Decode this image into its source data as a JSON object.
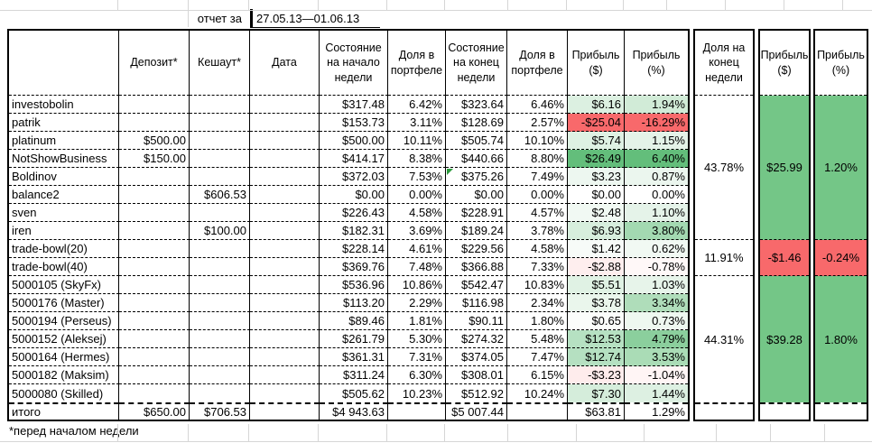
{
  "report": {
    "label": "отчет за",
    "period": "27.05.13—01.06.13",
    "footnote": "*перед началом недели"
  },
  "table": {
    "headers": [
      "",
      "Депозит*",
      "Кешаут*",
      "Дата",
      "Состояние на начало недели",
      "Доля в портфеле",
      "Состояние на конец недели",
      "Доля в портфеле",
      "Прибыль ($)",
      "Прибыль (%)"
    ],
    "rows": [
      {
        "name": "investobolin",
        "deposit": "",
        "cashout": "",
        "date": "",
        "start": "$317.48",
        "share_start": "6.42%",
        "end": "$323.64",
        "share_end": "6.46%",
        "usd": "$6.16",
        "pct": "1.94%",
        "usd_fill": "#DCF0E1",
        "pct_fill": "#D1EBD7"
      },
      {
        "name": "patrik",
        "deposit": "",
        "cashout": "",
        "date": "",
        "start": "$153.73",
        "share_start": "3.11%",
        "end": "$128.69",
        "share_end": "2.57%",
        "usd": "-$25.04",
        "pct": "-16.29%",
        "usd_fill": "#F8696B",
        "pct_fill": "#F8696B"
      },
      {
        "name": "platinum",
        "deposit": "$500.00",
        "cashout": "",
        "date": "",
        "start": "$500.00",
        "share_start": "10.11%",
        "end": "$505.74",
        "share_end": "10.10%",
        "usd": "$5.74",
        "pct": "1.15%",
        "usd_fill": "#DEF1E3",
        "pct_fill": "#E4F3E8"
      },
      {
        "name": "NotShowBusiness",
        "deposit": "$150.00",
        "cashout": "",
        "date": "",
        "start": "$414.17",
        "share_start": "8.38%",
        "end": "$440.66",
        "share_end": "8.80%",
        "usd": "$26.49",
        "pct": "6.40%",
        "usd_fill": "#63BE7B",
        "pct_fill": "#63BE7B"
      },
      {
        "name": "Boldinov",
        "deposit": "",
        "cashout": "",
        "date": "",
        "start": "$372.03",
        "share_start": "7.53%",
        "end": "$375.26",
        "share_end": "7.49%",
        "usd": "$3.23",
        "pct": "0.87%",
        "usd_fill": "#EDF7F0",
        "pct_fill": "#EBF6EE"
      },
      {
        "name": "balance2",
        "deposit": "",
        "cashout": "$606.53",
        "date": "",
        "start": "$0.00",
        "share_start": "0.00%",
        "end": "$0.00",
        "share_end": "0.00%",
        "usd": "$0.00",
        "pct": "0.00%",
        "usd_fill": "#FFFFFF",
        "pct_fill": "#FFFFFF"
      },
      {
        "name": "sven",
        "deposit": "",
        "cashout": "",
        "date": "",
        "start": "$226.43",
        "share_start": "4.58%",
        "end": "$228.91",
        "share_end": "4.57%",
        "usd": "$2.48",
        "pct": "1.10%",
        "usd_fill": "#F1F9F3",
        "pct_fill": "#E5F3E9"
      },
      {
        "name": "iren",
        "deposit": "",
        "cashout": "$100.00",
        "date": "",
        "start": "$182.31",
        "share_start": "3.69%",
        "end": "$189.24",
        "share_end": "3.78%",
        "usd": "$6.93",
        "pct": "3.80%",
        "usd_fill": "#D7EEDD",
        "pct_fill": "#A3D9B1"
      },
      {
        "name": "trade-bowl(20)",
        "deposit": "",
        "cashout": "",
        "date": "",
        "start": "$228.14",
        "share_start": "4.61%",
        "end": "$229.56",
        "share_end": "4.58%",
        "usd": "$1.42",
        "pct": "0.62%",
        "usd_fill": "#F7FBF8",
        "pct_fill": "#F1F9F3"
      },
      {
        "name": "trade-bowl(40)",
        "deposit": "",
        "cashout": "",
        "date": "",
        "start": "$369.76",
        "share_start": "7.48%",
        "end": "$366.88",
        "share_end": "7.33%",
        "usd": "-$2.88",
        "pct": "-0.78%",
        "usd_fill": "#FEEEEE",
        "pct_fill": "#FFF8F8"
      },
      {
        "name": "5000105 (SkyFx)",
        "deposit": "",
        "cashout": "",
        "date": "",
        "start": "$536.96",
        "share_start": "10.86%",
        "end": "$542.47",
        "share_end": "10.83%",
        "usd": "$5.51",
        "pct": "1.03%",
        "usd_fill": "#E0F2E4",
        "pct_fill": "#E7F4EA"
      },
      {
        "name": "5000176 (Master)",
        "deposit": "",
        "cashout": "",
        "date": "",
        "start": "$113.20",
        "share_start": "2.29%",
        "end": "$116.98",
        "share_end": "2.34%",
        "usd": "$3.78",
        "pct": "3.34%",
        "usd_fill": "#EAF6EC",
        "pct_fill": "#AFDDBA"
      },
      {
        "name": "5000194 (Perseus)",
        "deposit": "",
        "cashout": "",
        "date": "",
        "start": "$89.46",
        "share_start": "1.81%",
        "end": "$90.11",
        "share_end": "1.80%",
        "usd": "$0.65",
        "pct": "0.73%",
        "usd_fill": "#FBFDFB",
        "pct_fill": "#EEF8F0"
      },
      {
        "name": "5000152 (Aleksej)",
        "deposit": "",
        "cashout": "",
        "date": "",
        "start": "$261.79",
        "share_start": "5.30%",
        "end": "$274.32",
        "share_end": "5.48%",
        "usd": "$12.53",
        "pct": "4.79%",
        "usd_fill": "#B6E1C2",
        "pct_fill": "#8BCF9D"
      },
      {
        "name": "5000164 (Hermes)",
        "deposit": "",
        "cashout": "",
        "date": "",
        "start": "$361.31",
        "share_start": "7.31%",
        "end": "$374.05",
        "share_end": "7.47%",
        "usd": "$12.74",
        "pct": "3.53%",
        "usd_fill": "#B5E0C1",
        "pct_fill": "#AADCB6"
      },
      {
        "name": "5000182 (Maksim)",
        "deposit": "",
        "cashout": "",
        "date": "",
        "start": "$311.24",
        "share_start": "6.30%",
        "end": "$308.01",
        "share_end": "6.15%",
        "usd": "-$3.23",
        "pct": "-1.04%",
        "usd_fill": "#FEECEC",
        "pct_fill": "#FFF5F5"
      },
      {
        "name": "5000080 (Skilled)",
        "deposit": "",
        "cashout": "",
        "date": "",
        "start": "$505.62",
        "share_start": "10.23%",
        "end": "$512.92",
        "share_end": "10.24%",
        "usd": "$7.30",
        "pct": "1.44%",
        "usd_fill": "#D5EDDB",
        "pct_fill": "#DDF0E2"
      }
    ],
    "total": {
      "name": "итого",
      "deposit": "$650.00",
      "cashout": "$706.53",
      "date": "",
      "start": "$4 943.63",
      "share_start": "",
      "end": "$5 007.44",
      "share_end": "",
      "usd": "$63.81",
      "pct": "1.29%"
    }
  },
  "groups": {
    "share_header": "Доля на конец недели",
    "usd_header": "Прибыль ($)",
    "pct_header": "Прибыль (%)",
    "items": [
      {
        "share": "43.78%",
        "usd": "$25.99",
        "pct": "1.20%",
        "usd_fill": "#74C687",
        "pct_fill": "#74C687"
      },
      {
        "share": "11.91%",
        "usd": "-$1.46",
        "pct": "-0.24%",
        "usd_fill": "#F8696B",
        "pct_fill": "#F8696B"
      },
      {
        "share": "44.31%",
        "usd": "$39.28",
        "pct": "1.80%",
        "usd_fill": "#74C687",
        "pct_fill": "#74C687"
      }
    ]
  },
  "colors": {
    "positive_strong": "#63BE7B",
    "negative_strong": "#F8696B",
    "comment_marker": "#2E9B3E"
  }
}
